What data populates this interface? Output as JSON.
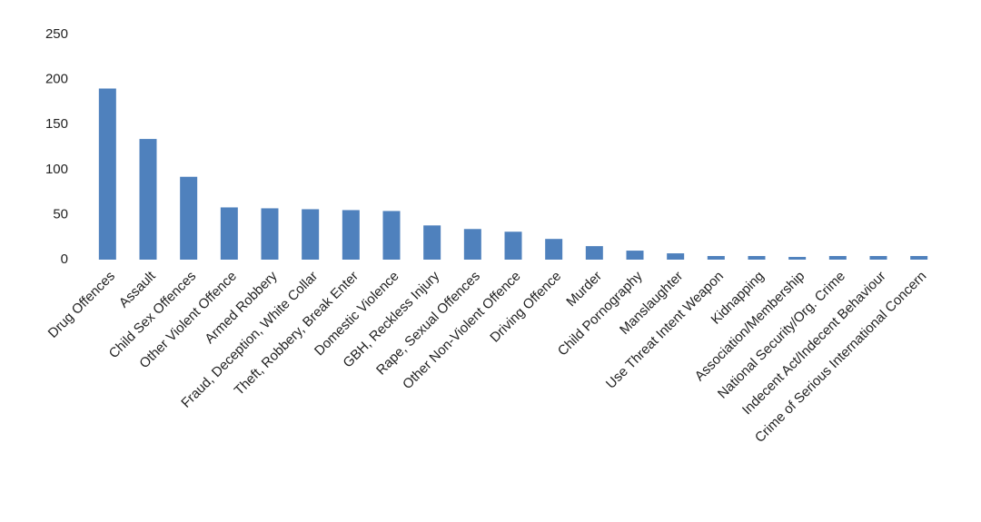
{
  "chart_data": {
    "type": "bar",
    "categories": [
      "Drug Offences",
      "Assault",
      "Child Sex Offences",
      "Other Violent Offence",
      "Armed Robbery",
      "Fraud, Deception, White Collar",
      "Theft, Robbery, Break Enter",
      "Domestic Violence",
      "GBH, Reckless Injury",
      "Rape, Sexual Offences",
      "Other Non-Violent Offence",
      "Driving Offence",
      "Murder",
      "Child Pornography",
      "Manslaughter",
      "Use Threat Intent Weapon",
      "Kidnapping",
      "Association/Membership",
      "National Security/Org. Crime",
      "Indecent Act/Indecent Behaviour",
      "Crime of Serious International Concern"
    ],
    "values": [
      190,
      134,
      92,
      58,
      57,
      56,
      55,
      54,
      38,
      34,
      31,
      23,
      15,
      10,
      7,
      4,
      4,
      3,
      4,
      4,
      4
    ],
    "color": "#4f81bd",
    "ylim": [
      0,
      250
    ],
    "yticks": [
      0,
      50,
      100,
      150,
      200,
      250
    ],
    "grid": false
  }
}
